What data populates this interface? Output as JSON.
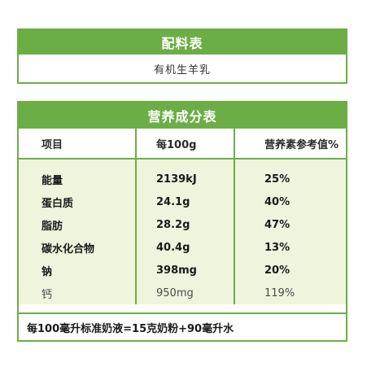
{
  "ingredients": {
    "title": "配料表",
    "content": "有机生羊乳"
  },
  "nutrition": {
    "title": "营养成分表",
    "columns": [
      "项目",
      "每100g",
      "营养素参考值%"
    ],
    "rows": [
      {
        "item": "能量",
        "per100g": "2139kJ",
        "nrv": "25%"
      },
      {
        "item": "蛋白质",
        "per100g": "24.1g",
        "nrv": "40%"
      },
      {
        "item": "脂肪",
        "per100g": "28.2g",
        "nrv": "47%"
      },
      {
        "item": "碳水化合物",
        "per100g": "40.4g",
        "nrv": "13%"
      },
      {
        "item": "钠",
        "per100g": "398mg",
        "nrv": "20%"
      },
      {
        "item": "钙",
        "per100g": "950mg",
        "nrv": "119%"
      }
    ],
    "note": "每100毫升标准奶液=15克奶粉+90毫升水"
  },
  "colors": {
    "accent": "#6cae46",
    "row_background": "#eef5dc"
  }
}
